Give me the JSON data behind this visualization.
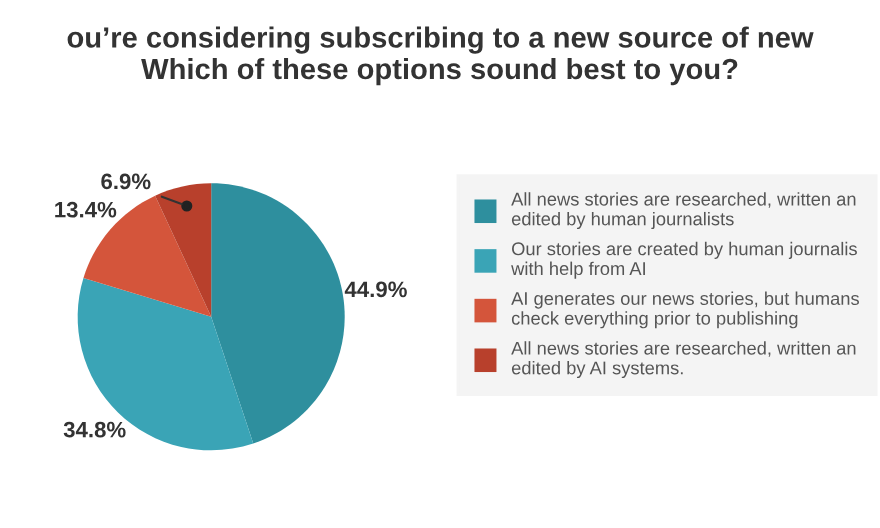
{
  "chart_data": {
    "type": "pie",
    "title": "ou’re considering subscribing to a new source of new\nWhich of these options sound best to you?",
    "categories": [
      "All news stories are researched, written an\nedited by human journalists",
      "Our stories are created by human journalis\nwith help from AI",
      "AI generates our news stories, but humans\ncheck everything prior to publishing",
      "All news stories are researched, written an\nedited by AI systems."
    ],
    "values": [
      44.9,
      34.8,
      13.4,
      6.9
    ],
    "colors": [
      "#2e8f9e",
      "#3aa4b6",
      "#d4553b",
      "#b8402c"
    ],
    "value_labels": [
      "44.9%",
      "34.8%",
      "13.4%",
      "6.9%"
    ],
    "legend": "right"
  }
}
